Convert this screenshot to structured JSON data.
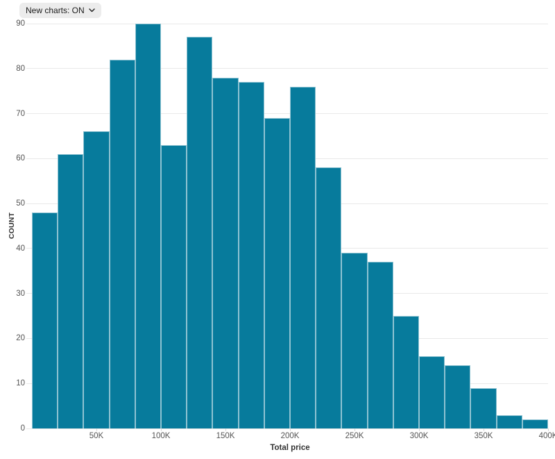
{
  "controls": {
    "new_charts_button": {
      "label": "New charts: ON",
      "icon": "chevron-down"
    }
  },
  "chart_data": {
    "type": "bar",
    "subtype": "histogram",
    "title": "",
    "xlabel": "Total price",
    "ylabel": "COUNT",
    "categories": [
      "0-20K",
      "20K-40K",
      "40K-60K",
      "60K-80K",
      "80K-100K",
      "100K-120K",
      "120K-140K",
      "140K-160K",
      "160K-180K",
      "180K-200K",
      "200K-220K",
      "220K-240K",
      "240K-260K",
      "260K-280K",
      "280K-300K",
      "300K-320K",
      "320K-340K",
      "340K-360K",
      "360K-380K",
      "380K-400K"
    ],
    "values": [
      48,
      61,
      66,
      82,
      90,
      63,
      87,
      78,
      77,
      69,
      76,
      58,
      39,
      37,
      25,
      16,
      14,
      9,
      3,
      2
    ],
    "bin_width": 20000,
    "xlim": [
      0,
      400000
    ],
    "ylim": [
      0,
      90
    ],
    "y_ticks": [
      0,
      10,
      20,
      30,
      40,
      50,
      60,
      70,
      80,
      90
    ],
    "x_tick_values": [
      50000,
      100000,
      150000,
      200000,
      250000,
      300000,
      350000,
      400000
    ],
    "x_tick_labels": [
      "50K",
      "100K",
      "150K",
      "200K",
      "250K",
      "300K",
      "350K",
      "400K"
    ],
    "grid": "horizontal",
    "legend": "none",
    "colors": {
      "bar_fill": "#077b9c",
      "bar_stroke": "rgba(255,255,255,0.55)",
      "gridline": "#e9e9e9",
      "tick_label": "#545454",
      "axis_title": "#333333",
      "button_bg": "#ececec",
      "button_text": "#1b1b1b"
    }
  }
}
